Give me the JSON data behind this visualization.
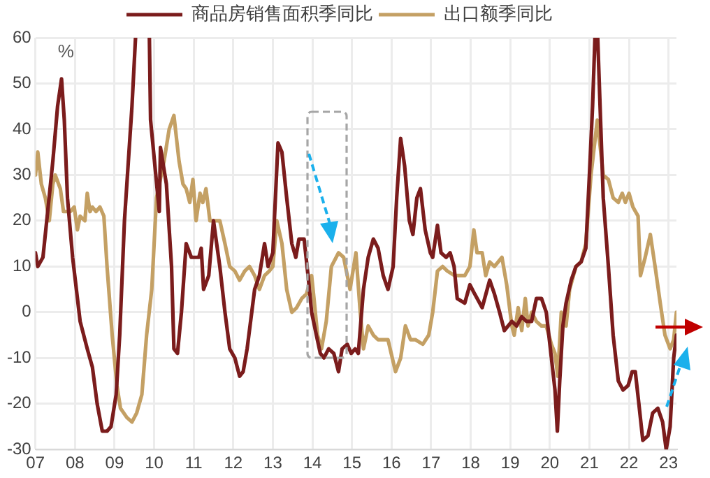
{
  "chart_data": {
    "type": "line",
    "legend": "top",
    "grid": true,
    "marker": "none",
    "line_style": "solid",
    "annotations": [
      "%"
    ],
    "xlim": [
      2007,
      2023.2
    ],
    "xticks": [
      {
        "value": 2007,
        "label": "07"
      },
      {
        "value": 2008,
        "label": "08"
      },
      {
        "value": 2009,
        "label": "09"
      },
      {
        "value": 2010,
        "label": "10"
      },
      {
        "value": 2011,
        "label": "11"
      },
      {
        "value": 2012,
        "label": "12"
      },
      {
        "value": 2013,
        "label": "13"
      },
      {
        "value": 2014,
        "label": "14"
      },
      {
        "value": 2015,
        "label": "15"
      },
      {
        "value": 2016,
        "label": "16"
      },
      {
        "value": 2017,
        "label": "17"
      },
      {
        "value": 2018,
        "label": "18"
      },
      {
        "value": 2019,
        "label": "19"
      },
      {
        "value": 2020,
        "label": "20"
      },
      {
        "value": 2021,
        "label": "21"
      },
      {
        "value": 2022,
        "label": "22"
      },
      {
        "value": 2023,
        "label": "23"
      }
    ],
    "ylim": [
      -30,
      60
    ],
    "yticks": [
      -30,
      -20,
      -10,
      0,
      10,
      20,
      30,
      40,
      50,
      60
    ],
    "series": [
      {
        "name": "商品房销售面积季同比",
        "color": "#7b1c1c",
        "x": [
          2007.0,
          2007.06,
          2007.19,
          2007.31,
          2007.44,
          2007.56,
          2007.66,
          2007.73,
          2007.81,
          2007.94,
          2008.13,
          2008.31,
          2008.44,
          2008.56,
          2008.69,
          2008.81,
          2008.91,
          2009.04,
          2009.13,
          2009.25,
          2009.44,
          2009.53,
          2009.7,
          2009.88,
          2009.91,
          2010.13,
          2010.16,
          2010.31,
          2010.44,
          2010.5,
          2010.59,
          2010.69,
          2010.81,
          2010.94,
          2011.13,
          2011.19,
          2011.25,
          2011.38,
          2011.5,
          2011.66,
          2011.79,
          2011.91,
          2012.04,
          2012.16,
          2012.25,
          2012.35,
          2012.54,
          2012.66,
          2012.79,
          2012.88,
          2013.0,
          2013.13,
          2013.23,
          2013.35,
          2013.48,
          2013.58,
          2013.66,
          2013.79,
          2013.89,
          2013.98,
          2014.1,
          2014.2,
          2014.29,
          2014.41,
          2014.54,
          2014.66,
          2014.75,
          2014.88,
          2014.98,
          2015.08,
          2015.16,
          2015.29,
          2015.41,
          2015.54,
          2015.66,
          2015.79,
          2015.91,
          2016.04,
          2016.13,
          2016.23,
          2016.33,
          2016.45,
          2016.54,
          2016.64,
          2016.73,
          2016.85,
          2016.98,
          2017.04,
          2017.16,
          2017.25,
          2017.38,
          2017.48,
          2017.58,
          2017.66,
          2017.85,
          2017.98,
          2018.1,
          2018.29,
          2018.48,
          2018.6,
          2018.73,
          2018.85,
          2019.04,
          2019.16,
          2019.29,
          2019.41,
          2019.54,
          2019.66,
          2019.79,
          2019.91,
          2020.04,
          2020.13,
          2020.19,
          2020.25,
          2020.33,
          2020.41,
          2020.54,
          2020.66,
          2020.79,
          2020.91,
          2021.0,
          2021.08,
          2021.14,
          2021.21,
          2021.29,
          2021.35,
          2021.48,
          2021.6,
          2021.73,
          2021.85,
          2021.98,
          2022.08,
          2022.16,
          2022.25,
          2022.35,
          2022.48,
          2022.6,
          2022.73,
          2022.85,
          2022.94,
          2023.04,
          2023.13,
          2023.2
        ],
        "values": [
          13,
          10,
          12,
          22,
          33,
          45,
          51,
          42,
          25,
          12,
          -2,
          -8,
          -12,
          -20,
          -26,
          -26,
          -25,
          -18,
          -5,
          20,
          45,
          60,
          null,
          60,
          42,
          22,
          36,
          28,
          10,
          -8,
          -9,
          0,
          15,
          12,
          12,
          14,
          5,
          8,
          20,
          10,
          0,
          -8,
          -10,
          -14,
          -13,
          -8,
          5,
          8,
          15,
          10,
          13,
          37,
          35,
          25,
          15,
          12,
          16,
          16,
          8,
          0,
          -5,
          -9,
          -10,
          -8,
          -9,
          -13,
          -8,
          -7,
          -9,
          -8,
          -9,
          5,
          12,
          16,
          14,
          8,
          5,
          10,
          25,
          38,
          32,
          20,
          17,
          25,
          27,
          18,
          13,
          12,
          19,
          13,
          12,
          13,
          10,
          3,
          2,
          6,
          4,
          1,
          7,
          4,
          0,
          -4,
          -2,
          -3,
          -1,
          -2,
          -2,
          3,
          3,
          0,
          -10,
          -17,
          -26,
          -15,
          -3,
          2,
          7,
          10,
          11,
          14,
          30,
          45,
          60,
          60,
          40,
          25,
          10,
          -5,
          -15,
          -17,
          -16,
          -13,
          -13,
          -20,
          -28,
          -27,
          -22,
          -21,
          -24,
          -30,
          -25,
          -10,
          -5
        ]
      },
      {
        "name": "出口额季同比",
        "color": "#c4a064",
        "x": [
          2007.0,
          2007.06,
          2007.15,
          2007.25,
          2007.35,
          2007.44,
          2007.5,
          2007.63,
          2007.71,
          2007.88,
          2007.98,
          2008.06,
          2008.13,
          2008.25,
          2008.31,
          2008.38,
          2008.44,
          2008.53,
          2008.63,
          2008.73,
          2008.81,
          2008.94,
          2009.06,
          2009.15,
          2009.31,
          2009.44,
          2009.56,
          2009.69,
          2009.81,
          2009.94,
          2010.06,
          2010.25,
          2010.38,
          2010.5,
          2010.63,
          2010.73,
          2010.81,
          2010.9,
          2010.98,
          2011.06,
          2011.16,
          2011.23,
          2011.31,
          2011.41,
          2011.48,
          2011.66,
          2011.79,
          2011.91,
          2012.04,
          2012.16,
          2012.29,
          2012.41,
          2012.54,
          2012.66,
          2012.79,
          2012.91,
          2013.0,
          2013.1,
          2013.23,
          2013.35,
          2013.48,
          2013.6,
          2013.73,
          2013.85,
          2013.98,
          2014.04,
          2014.13,
          2014.23,
          2014.35,
          2014.48,
          2014.66,
          2014.79,
          2014.95,
          2015.1,
          2015.2,
          2015.29,
          2015.41,
          2015.54,
          2015.66,
          2015.79,
          2015.91,
          2016.1,
          2016.23,
          2016.35,
          2016.48,
          2016.6,
          2016.79,
          2016.94,
          2017.04,
          2017.16,
          2017.29,
          2017.41,
          2017.6,
          2017.79,
          2017.85,
          2017.98,
          2018.08,
          2018.16,
          2018.29,
          2018.38,
          2018.48,
          2018.6,
          2018.79,
          2018.91,
          2019.04,
          2019.1,
          2019.2,
          2019.29,
          2019.38,
          2019.45,
          2019.54,
          2019.66,
          2019.79,
          2019.91,
          2020.04,
          2020.13,
          2020.2,
          2020.29,
          2020.41,
          2020.5,
          2020.66,
          2020.79,
          2020.91,
          2021.04,
          2021.2,
          2021.35,
          2021.48,
          2021.6,
          2021.73,
          2021.83,
          2021.91,
          2022.0,
          2022.1,
          2022.23,
          2022.29,
          2022.41,
          2022.54,
          2022.66,
          2022.79,
          2022.91,
          2023.04,
          2023.13,
          2023.2
        ],
        "values": [
          30,
          35,
          28,
          25,
          20,
          28,
          30,
          27,
          22,
          22,
          23,
          18,
          21,
          20,
          26,
          22,
          23,
          22,
          23,
          21,
          10,
          -5,
          -16,
          -21,
          -23,
          -24,
          -22,
          -18,
          -5,
          5,
          25,
          33,
          40,
          43,
          33,
          28,
          27,
          24,
          29,
          20,
          26,
          24,
          27,
          20,
          20,
          20,
          15,
          10,
          9,
          7,
          9,
          10,
          8,
          5,
          8,
          9,
          10,
          20,
          15,
          5,
          0,
          1,
          3,
          4,
          8,
          3,
          -5,
          -8,
          -2,
          10,
          13,
          12,
          5,
          13,
          1,
          -8,
          -3,
          -5,
          -6,
          -6,
          -6,
          -13,
          -10,
          -3,
          -6,
          -6,
          -7,
          -5,
          0,
          9,
          10,
          9,
          8,
          8,
          8,
          10,
          18,
          13,
          13,
          8,
          11,
          10,
          12,
          6,
          -3,
          -5,
          1,
          -4,
          3,
          -3,
          0,
          -2,
          -3,
          -3,
          -7,
          -9,
          -14,
          0,
          -3,
          5,
          10,
          11,
          15,
          30,
          42,
          30,
          29,
          25,
          24,
          26,
          24,
          26,
          23,
          21,
          8,
          12,
          17,
          10,
          2,
          -5,
          -8,
          -6,
          0
        ]
      }
    ]
  }
}
